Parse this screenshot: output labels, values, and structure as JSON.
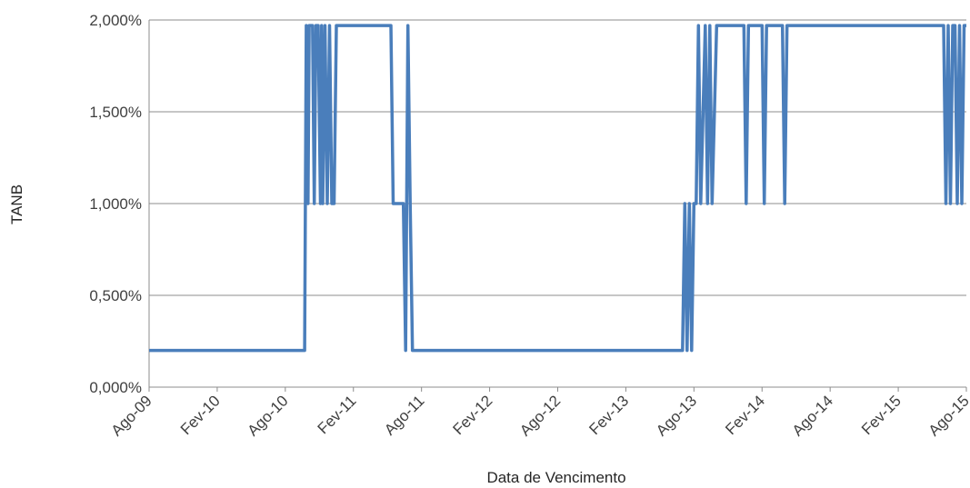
{
  "chart_data": {
    "type": "line",
    "title": "",
    "xlabel": "Data de Vencimento",
    "ylabel": "TANB",
    "ylim": [
      0,
      2
    ],
    "yticks": [
      0,
      0.5,
      1,
      1.5,
      2
    ],
    "ytick_labels": [
      "0,000%",
      "0,500%",
      "1,000%",
      "1,500%",
      "2,000%"
    ],
    "xlim": [
      "2009-08",
      "2015-08"
    ],
    "xtick_labels": [
      "Ago-09",
      "Fev-10",
      "Ago-10",
      "Fev-11",
      "Ago-11",
      "Fev-12",
      "Ago-12",
      "Fev-13",
      "Ago-13",
      "Fev-14",
      "Ago-14",
      "Fev-15",
      "Ago-15"
    ],
    "grid": "horizontal",
    "legend": "none",
    "line_color": "#4a7ebb",
    "series": [
      {
        "x": [
          "2009-08",
          "2010-09.7",
          "2010-09.85",
          "2010-10",
          "2010-10.1",
          "2010-10.4",
          "2010-10.55",
          "2010-10.7",
          "2010-10.9",
          "2010-11.1",
          "2010-11.2",
          "2010-11.3",
          "2010-11.5",
          "2010-11.7",
          "2010-11.9",
          "2010-12.1",
          "2010-12.3",
          "2010-12.5",
          "2010-12.8",
          "2011-01",
          "2011-01.2",
          "2011-01.4",
          "2011-05.3",
          "2011-05.5",
          "2011-06.4",
          "2011-06.6",
          "2011-06.8",
          "2011-07",
          "2011-07.2",
          "2011-07.4",
          "2013-07",
          "2013-07.2",
          "2013-07.4",
          "2013-07.6",
          "2013-07.8",
          "2013-08",
          "2013-08.2",
          "2013-08.4",
          "2013-08.6",
          "2013-09",
          "2013-09.2",
          "2013-09.4",
          "2013-09.6",
          "2013-10",
          "2013-10.2",
          "2013-10.5",
          "2013-12.4",
          "2013-12.6",
          "2013-12.8",
          "2014-02",
          "2014-02.2",
          "2014-02.4",
          "2014-03.8",
          "2014-04",
          "2014-04.2",
          "2015-06",
          "2015-06.2",
          "2015-06.4",
          "2015-06.6",
          "2015-06.8",
          "2015-07",
          "2015-07.2",
          "2015-07.4",
          "2015-07.6",
          "2015-07.8",
          "2015-08"
        ],
        "y": [
          0.2,
          0.2,
          1.97,
          1.0,
          1.97,
          1.97,
          1.0,
          1.97,
          1.97,
          1.0,
          1.97,
          1.0,
          1.97,
          1.0,
          1.97,
          1.0,
          1.0,
          1.97,
          1.97,
          1.97,
          1.97,
          1.97,
          1.97,
          1.0,
          1.0,
          0.2,
          1.97,
          1.0,
          0.2,
          0.2,
          0.2,
          1.0,
          0.2,
          1.0,
          0.2,
          1.0,
          1.0,
          1.97,
          1.0,
          1.97,
          1.0,
          1.97,
          1.0,
          1.97,
          1.97,
          1.97,
          1.97,
          1.0,
          1.97,
          1.97,
          1.0,
          1.97,
          1.97,
          1.0,
          1.97,
          1.97,
          1.0,
          1.97,
          1.0,
          1.97,
          1.97,
          1.0,
          1.97,
          1.0,
          1.97,
          1.97
        ]
      }
    ]
  }
}
